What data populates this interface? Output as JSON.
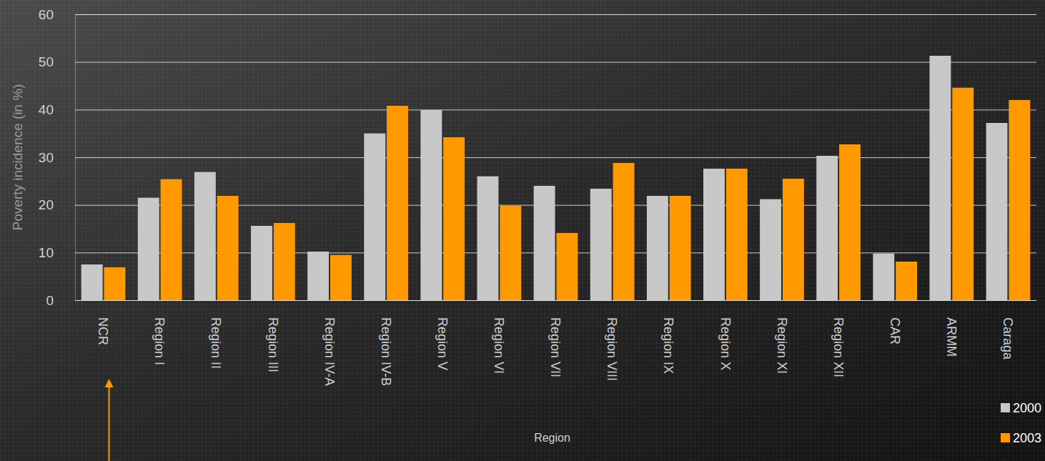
{
  "chart_data": {
    "type": "bar",
    "ylabel": "Poverty incidence (in %)",
    "xlabel": "Region",
    "categories": [
      "NCR",
      "Region I",
      "Region II",
      "Region III",
      "Region IV-A",
      "Region IV-B",
      "Region V",
      "Region VI",
      "Region VII",
      "Region VIII",
      "Region IX",
      "Region X",
      "Region XI",
      "Region XII",
      "CAR",
      "ARMM",
      "Caraga"
    ],
    "series": [
      {
        "name": "2000",
        "color": "#c8c8c8",
        "values": [
          7.5,
          21.5,
          26.9,
          15.6,
          10.2,
          35.0,
          39.9,
          26.0,
          24.0,
          23.4,
          21.9,
          27.6,
          21.2,
          30.3,
          9.8,
          51.3,
          37.2
        ]
      },
      {
        "name": "2003",
        "color": "#ff9900",
        "values": [
          6.9,
          25.4,
          21.9,
          16.2,
          9.5,
          40.8,
          34.2,
          19.8,
          14.1,
          28.8,
          21.9,
          27.6,
          25.5,
          32.7,
          8.1,
          44.6,
          42.0
        ]
      }
    ],
    "ylim": [
      0,
      60
    ],
    "yticks": [
      0,
      10,
      20,
      30,
      40,
      50,
      60
    ],
    "grid": true,
    "legend": "bottom-right"
  }
}
